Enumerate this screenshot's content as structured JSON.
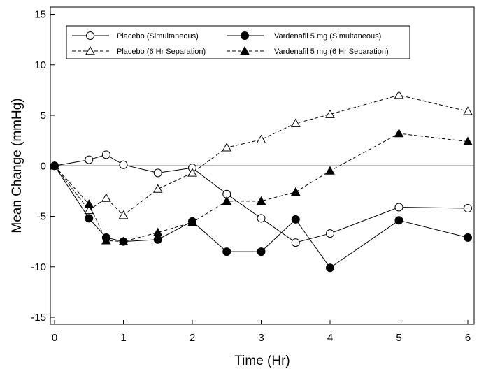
{
  "chart_data": {
    "type": "line",
    "title": "",
    "xlabel": "Time (Hr)",
    "ylabel": "Mean Change (mmHg)",
    "xlim": [
      0,
      6
    ],
    "ylim": [
      -15,
      15
    ],
    "x_ticks": [
      0,
      1,
      2,
      3,
      4,
      5,
      6
    ],
    "y_ticks": [
      15,
      10,
      5,
      0,
      -5,
      -10,
      -15
    ],
    "reference_line_y": 0,
    "grid": false,
    "legend_position": "top",
    "series": [
      {
        "name": "Placebo (Simultaneous)",
        "marker": "circle-open",
        "line": "solid",
        "x": [
          0,
          0.5,
          0.75,
          1,
          1.5,
          2,
          2.5,
          3,
          3.5,
          4,
          5,
          6
        ],
        "y": [
          0,
          0.6,
          1.1,
          0.1,
          -0.7,
          -0.2,
          -2.8,
          -5.2,
          -7.6,
          -6.7,
          -4.1,
          -4.2
        ]
      },
      {
        "name": "Placebo (6 Hr Separation)",
        "marker": "triangle-open",
        "line": "dashed",
        "x": [
          0,
          0.5,
          0.75,
          1,
          1.5,
          2,
          2.5,
          3,
          3.5,
          4,
          5,
          6
        ],
        "y": [
          0,
          -4.4,
          -3.2,
          -4.9,
          -2.3,
          -0.7,
          1.8,
          2.6,
          4.2,
          5.1,
          7.0,
          5.4
        ]
      },
      {
        "name": "Vardenafil 5 mg (Simultaneous)",
        "marker": "circle-filled",
        "line": "solid",
        "x": [
          0,
          0.5,
          0.75,
          1,
          1.5,
          2,
          2.5,
          3,
          3.5,
          4,
          5,
          6
        ],
        "y": [
          0,
          -5.2,
          -7.1,
          -7.5,
          -7.3,
          -5.5,
          -8.5,
          -8.5,
          -5.3,
          -10.1,
          -5.4,
          -7.1
        ]
      },
      {
        "name": "Vardenafil 5 mg (6 Hr Separation)",
        "marker": "triangle-filled",
        "line": "dashed",
        "x": [
          0,
          0.5,
          0.75,
          1,
          1.5,
          2,
          2.5,
          3,
          3.5,
          4,
          5,
          6
        ],
        "y": [
          0,
          -3.8,
          -7.4,
          -7.5,
          -6.6,
          -5.6,
          -3.5,
          -3.5,
          -2.6,
          -0.5,
          3.2,
          2.4
        ]
      }
    ]
  }
}
